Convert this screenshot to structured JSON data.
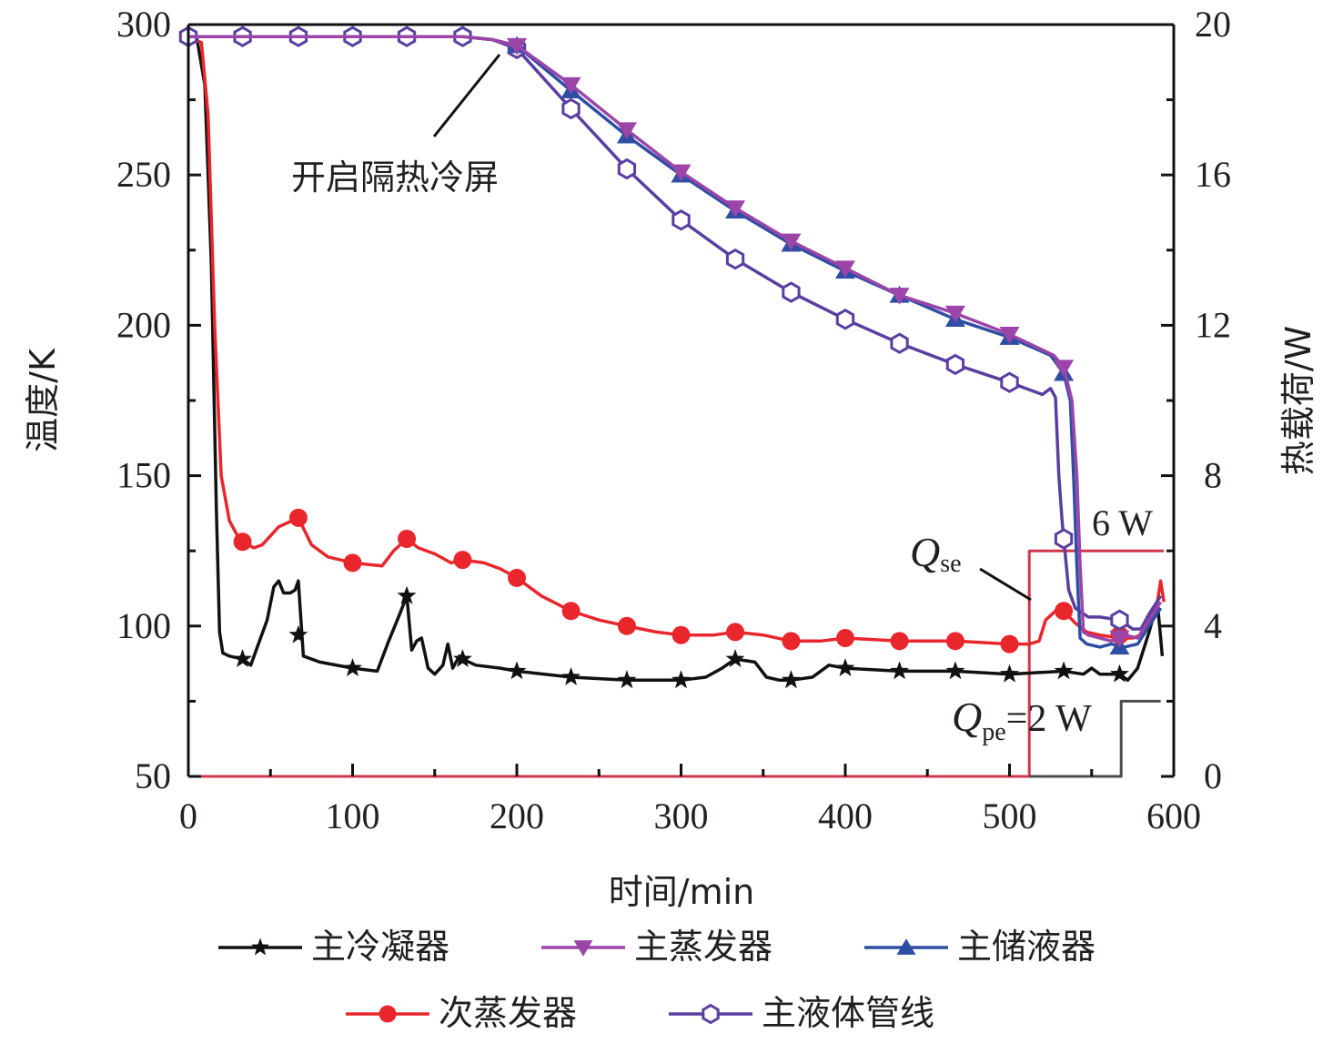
{
  "chart_data": {
    "type": "line",
    "title": "",
    "xlabel": "时间/min",
    "ylabel": "温度/K",
    "y2label": "热载荷/W",
    "xlim": [
      0,
      600
    ],
    "ylim": [
      50,
      300
    ],
    "y2lim": [
      0,
      20
    ],
    "xticks": [
      "0",
      "100",
      "200",
      "300",
      "400",
      "500",
      "600"
    ],
    "yticks": [
      "50",
      "100",
      "150",
      "200",
      "250",
      "300"
    ],
    "y2ticks": [
      "0",
      "4",
      "8",
      "12",
      "16",
      "20"
    ],
    "grid": false,
    "legend_position": "bottom",
    "annotations": {
      "shield": "开启隔热冷屏",
      "qse_Q": "Q",
      "qse_sub": "se",
      "qse_value": "6 W",
      "qpe_Q": "Q",
      "qpe_sub": "pe",
      "qpe_value": "=2 W"
    },
    "series": [
      {
        "name": "主冷凝器",
        "color": "#111111",
        "marker": "star",
        "axis": "left",
        "x": [
          0,
          5,
          10,
          14,
          17,
          19,
          21,
          25,
          33,
          38,
          42,
          48,
          52,
          55,
          58,
          62,
          65,
          67,
          70,
          80,
          100,
          115,
          122,
          128,
          133,
          136,
          139,
          142,
          146,
          150,
          155,
          158,
          161,
          165,
          167,
          175,
          190,
          200,
          233,
          267,
          300,
          315,
          325,
          333,
          345,
          352,
          360,
          367,
          380,
          390,
          400,
          433,
          467,
          500,
          533,
          545,
          550,
          555,
          567,
          572,
          578,
          585,
          590,
          593
        ],
        "y": [
          296,
          296,
          280,
          220,
          140,
          98,
          91,
          90,
          89,
          87,
          93,
          102,
          113,
          115,
          111,
          111,
          112,
          115,
          90,
          88,
          86,
          85,
          95,
          103,
          110,
          92,
          95,
          96,
          86,
          84,
          87,
          94,
          86,
          90,
          89,
          87,
          86,
          85,
          83,
          82,
          82,
          83,
          86,
          89,
          88,
          83,
          82,
          82,
          83,
          87,
          86,
          85,
          85,
          84,
          85,
          84,
          86,
          84,
          84,
          82,
          86,
          98,
          108,
          90
        ],
        "marker_x": [
          33,
          67,
          100,
          133,
          167,
          200,
          233,
          267,
          300,
          333,
          367,
          400,
          433,
          467,
          500,
          533,
          567
        ],
        "marker_y": [
          89,
          97,
          86,
          110,
          89,
          85,
          83,
          82,
          82,
          89,
          82,
          86,
          85,
          85,
          84,
          85,
          84
        ]
      },
      {
        "name": "主蒸发器",
        "color": "#9b45a8",
        "marker": "triangle-down",
        "axis": "left",
        "x": [
          0,
          33,
          67,
          100,
          133,
          167,
          185,
          200,
          233,
          267,
          300,
          333,
          367,
          400,
          433,
          467,
          500,
          527,
          533,
          538,
          541,
          543,
          545,
          548,
          555,
          562,
          570,
          578,
          585,
          592
        ],
        "y": [
          296,
          296,
          296,
          296,
          296,
          296,
          295,
          293,
          280,
          265,
          251,
          239,
          228,
          219,
          210,
          204,
          197,
          190,
          186,
          175,
          150,
          120,
          98,
          97,
          96,
          95,
          97,
          96,
          102,
          108
        ],
        "marker_x": [
          200,
          233,
          267,
          300,
          333,
          367,
          400,
          433,
          467,
          500,
          533,
          567
        ],
        "marker_y": [
          293,
          280,
          265,
          251,
          239,
          228,
          219,
          210,
          204,
          197,
          186,
          96
        ]
      },
      {
        "name": "主储液器",
        "color": "#2e4ea4",
        "marker": "triangle-up",
        "axis": "left",
        "x": [
          0,
          33,
          67,
          100,
          133,
          167,
          185,
          200,
          233,
          267,
          300,
          333,
          367,
          400,
          433,
          467,
          500,
          525,
          533,
          537,
          539,
          541,
          543,
          547,
          555,
          562,
          570,
          578,
          585,
          592
        ],
        "y": [
          296,
          296,
          296,
          296,
          296,
          296,
          295,
          293,
          278,
          263,
          250,
          238,
          227,
          218,
          210,
          202,
          196,
          190,
          184,
          175,
          150,
          120,
          96,
          94,
          93,
          94,
          93,
          94,
          100,
          106
        ],
        "marker_x": [
          200,
          233,
          267,
          300,
          333,
          367,
          400,
          433,
          467,
          500,
          533,
          567
        ],
        "marker_y": [
          293,
          278,
          263,
          250,
          238,
          227,
          218,
          210,
          202,
          196,
          184,
          93
        ]
      },
      {
        "name": "次蒸发器",
        "color": "#e8262c",
        "marker": "circle",
        "axis": "left",
        "x": [
          0,
          8,
          12,
          16,
          20,
          25,
          30,
          33,
          40,
          45,
          55,
          67,
          75,
          85,
          100,
          118,
          125,
          133,
          140,
          150,
          160,
          167,
          180,
          190,
          200,
          215,
          233,
          250,
          267,
          285,
          300,
          320,
          333,
          350,
          367,
          385,
          400,
          433,
          467,
          500,
          512,
          518,
          522,
          528,
          533,
          540,
          547,
          555,
          567,
          575,
          580,
          585,
          590,
          592,
          594
        ],
        "y": [
          296,
          294,
          270,
          200,
          150,
          135,
          130,
          128,
          126,
          127,
          133,
          136,
          127,
          123,
          121,
          120,
          125,
          129,
          126,
          124,
          121,
          122,
          121,
          119,
          116,
          110,
          105,
          102,
          100,
          98,
          97,
          97,
          98,
          97,
          95,
          95,
          96,
          95,
          95,
          94,
          94,
          95,
          102,
          105,
          105,
          101,
          98,
          97,
          96,
          96,
          97,
          102,
          108,
          115,
          108
        ],
        "marker_x": [
          33,
          67,
          100,
          133,
          167,
          200,
          233,
          267,
          300,
          333,
          367,
          400,
          433,
          467,
          500,
          533,
          567
        ],
        "marker_y": [
          128,
          136,
          121,
          129,
          122,
          116,
          105,
          100,
          97,
          98,
          95,
          96,
          95,
          95,
          94,
          105,
          97
        ]
      },
      {
        "name": "主液体管线",
        "color": "#5a3ea0",
        "marker": "hexagon-open",
        "axis": "left",
        "x": [
          0,
          33,
          67,
          100,
          133,
          167,
          185,
          200,
          233,
          267,
          300,
          333,
          367,
          400,
          433,
          467,
          500,
          520,
          525,
          528,
          530,
          532,
          533,
          536,
          540,
          548,
          555,
          567,
          575,
          580,
          585,
          592
        ],
        "y": [
          296,
          296,
          296,
          296,
          296,
          296,
          295,
          292,
          272,
          252,
          235,
          222,
          211,
          202,
          194,
          187,
          181,
          177,
          179,
          176,
          150,
          135,
          129,
          112,
          106,
          103,
          103,
          102,
          99,
          99,
          104,
          110
        ],
        "marker_x": [
          0,
          33,
          67,
          100,
          133,
          167,
          200,
          233,
          267,
          300,
          333,
          367,
          400,
          433,
          467,
          500,
          533,
          567
        ],
        "marker_y": [
          296,
          296,
          296,
          296,
          296,
          296,
          292,
          272,
          252,
          235,
          222,
          211,
          202,
          194,
          187,
          181,
          129,
          102
        ]
      },
      {
        "name": "Qse",
        "color": "#d2364b",
        "marker": "none",
        "axis": "right",
        "x": [
          0,
          512,
          512,
          594
        ],
        "y": [
          0,
          0,
          6,
          6
        ]
      },
      {
        "name": "Qpe",
        "color": "#4d4d4f",
        "marker": "none",
        "axis": "right",
        "x": [
          512,
          568,
          568,
          592
        ],
        "y": [
          0,
          0,
          2,
          2
        ]
      }
    ],
    "legend": [
      "主冷凝器",
      "主蒸发器",
      "主储液器",
      "次蒸发器",
      "主液体管线"
    ]
  }
}
